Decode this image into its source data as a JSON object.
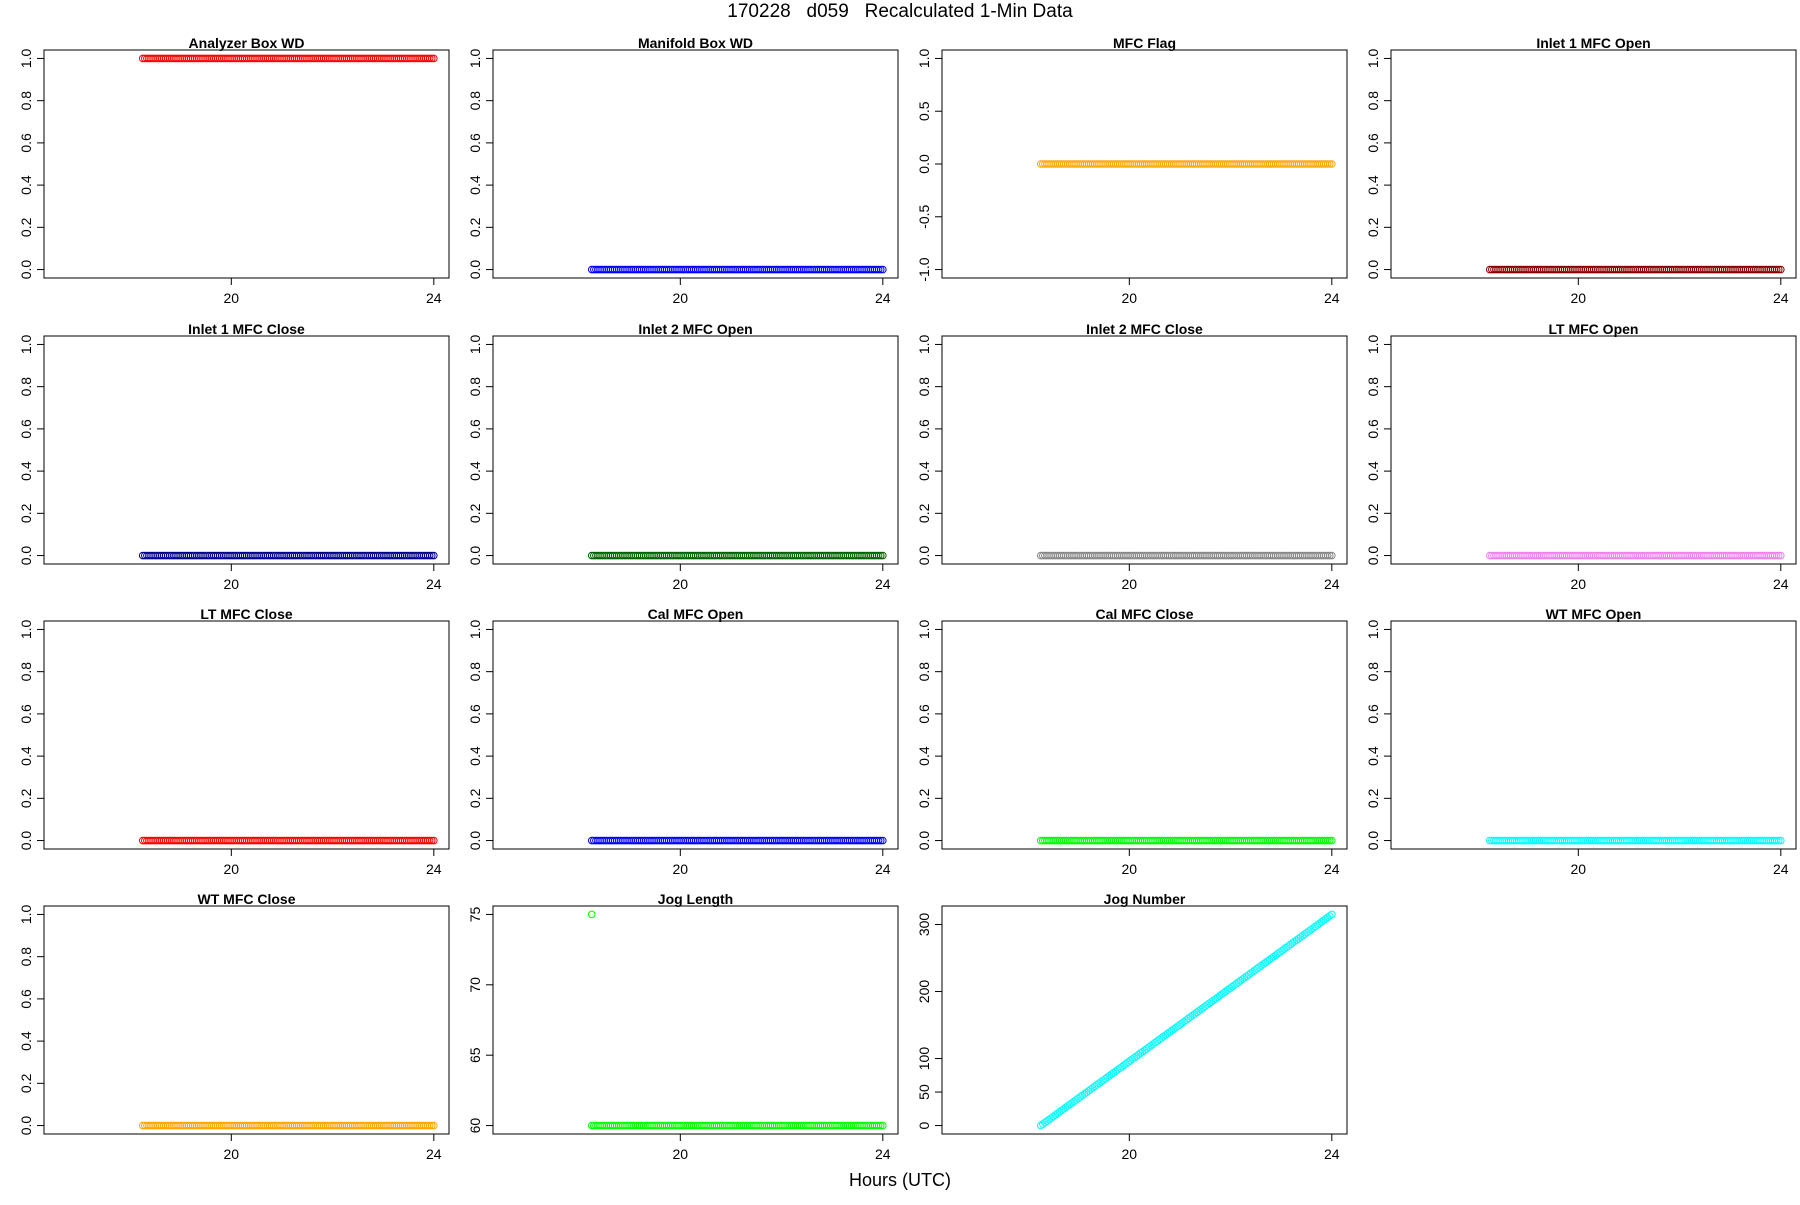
{
  "figure": {
    "title": "170228   d059   Recalculated 1-Min Data",
    "xlabel": "Hours (UTC)"
  },
  "chart_data": [
    {
      "type": "scatter",
      "title": "Analyzer Box WD",
      "color": "#ff0000",
      "xlim": [
        16.3,
        24.3
      ],
      "ylim": [
        -0.04,
        1.04
      ],
      "xticks": [
        20,
        24
      ],
      "yticks": [
        "0.0",
        "0.2",
        "0.4",
        "0.6",
        "0.8",
        "1.0"
      ],
      "x_range": [
        18.25,
        24.0
      ],
      "y_values": "constant",
      "y": 1.0
    },
    {
      "type": "scatter",
      "title": "Manifold Box WD",
      "color": "#0000ff",
      "xlim": [
        16.3,
        24.3
      ],
      "ylim": [
        -0.04,
        1.04
      ],
      "xticks": [
        20,
        24
      ],
      "yticks": [
        "0.0",
        "0.2",
        "0.4",
        "0.6",
        "0.8",
        "1.0"
      ],
      "x_range": [
        18.25,
        24.0
      ],
      "y_values": "constant",
      "y": 0.0
    },
    {
      "type": "scatter",
      "title": "MFC Flag",
      "color": "#ffa500",
      "xlim": [
        16.3,
        24.3
      ],
      "ylim": [
        -1.08,
        1.08
      ],
      "xticks": [
        20,
        24
      ],
      "yticks": [
        "-1.0",
        "-0.5",
        "0.0",
        "0.5",
        "1.0"
      ],
      "x_range": [
        18.25,
        24.0
      ],
      "y_values": "constant",
      "y": 0.0
    },
    {
      "type": "scatter",
      "title": "Inlet 1 MFC Open",
      "color": "#8b0000",
      "xlim": [
        16.3,
        24.3
      ],
      "ylim": [
        -0.04,
        1.04
      ],
      "xticks": [
        20,
        24
      ],
      "yticks": [
        "0.0",
        "0.2",
        "0.4",
        "0.6",
        "0.8",
        "1.0"
      ],
      "x_range": [
        18.25,
        24.0
      ],
      "y_values": "constant",
      "y": 0.0
    },
    {
      "type": "scatter",
      "title": "Inlet 1 MFC Close",
      "color": "#00008b",
      "xlim": [
        16.3,
        24.3
      ],
      "ylim": [
        -0.04,
        1.04
      ],
      "xticks": [
        20,
        24
      ],
      "yticks": [
        "0.0",
        "0.2",
        "0.4",
        "0.6",
        "0.8",
        "1.0"
      ],
      "x_range": [
        18.25,
        24.0
      ],
      "y_values": "constant",
      "y": 0.0
    },
    {
      "type": "scatter",
      "title": "Inlet 2 MFC Open",
      "color": "#006400",
      "xlim": [
        16.3,
        24.3
      ],
      "ylim": [
        -0.04,
        1.04
      ],
      "xticks": [
        20,
        24
      ],
      "yticks": [
        "0.0",
        "0.2",
        "0.4",
        "0.6",
        "0.8",
        "1.0"
      ],
      "x_range": [
        18.25,
        24.0
      ],
      "y_values": "constant",
      "y": 0.0
    },
    {
      "type": "scatter",
      "title": "Inlet 2 MFC Close",
      "color": "#888888",
      "xlim": [
        16.3,
        24.3
      ],
      "ylim": [
        -0.04,
        1.04
      ],
      "xticks": [
        20,
        24
      ],
      "yticks": [
        "0.0",
        "0.2",
        "0.4",
        "0.6",
        "0.8",
        "1.0"
      ],
      "x_range": [
        18.25,
        24.0
      ],
      "y_values": "constant",
      "y": 0.0
    },
    {
      "type": "scatter",
      "title": "LT MFC Open",
      "color": "#ee82ee",
      "xlim": [
        16.3,
        24.3
      ],
      "ylim": [
        -0.04,
        1.04
      ],
      "xticks": [
        20,
        24
      ],
      "yticks": [
        "0.0",
        "0.2",
        "0.4",
        "0.6",
        "0.8",
        "1.0"
      ],
      "x_range": [
        18.25,
        24.0
      ],
      "y_values": "constant",
      "y": 0.0
    },
    {
      "type": "scatter",
      "title": "LT MFC Close",
      "color": "#ff0000",
      "xlim": [
        16.3,
        24.3
      ],
      "ylim": [
        -0.04,
        1.04
      ],
      "xticks": [
        20,
        24
      ],
      "yticks": [
        "0.0",
        "0.2",
        "0.4",
        "0.6",
        "0.8",
        "1.0"
      ],
      "x_range": [
        18.25,
        24.0
      ],
      "y_values": "constant",
      "y": 0.0
    },
    {
      "type": "scatter",
      "title": "Cal MFC Open",
      "color": "#0000ff",
      "xlim": [
        16.3,
        24.3
      ],
      "ylim": [
        -0.04,
        1.04
      ],
      "xticks": [
        20,
        24
      ],
      "yticks": [
        "0.0",
        "0.2",
        "0.4",
        "0.6",
        "0.8",
        "1.0"
      ],
      "x_range": [
        18.25,
        24.0
      ],
      "y_values": "constant",
      "y": 0.0
    },
    {
      "type": "scatter",
      "title": "Cal MFC Close",
      "color": "#00ff00",
      "xlim": [
        16.3,
        24.3
      ],
      "ylim": [
        -0.04,
        1.04
      ],
      "xticks": [
        20,
        24
      ],
      "yticks": [
        "0.0",
        "0.2",
        "0.4",
        "0.6",
        "0.8",
        "1.0"
      ],
      "x_range": [
        18.25,
        24.0
      ],
      "y_values": "constant",
      "y": 0.0
    },
    {
      "type": "scatter",
      "title": "WT MFC Open",
      "color": "#00ffff",
      "xlim": [
        16.3,
        24.3
      ],
      "ylim": [
        -0.04,
        1.04
      ],
      "xticks": [
        20,
        24
      ],
      "yticks": [
        "0.0",
        "0.2",
        "0.4",
        "0.6",
        "0.8",
        "1.0"
      ],
      "x_range": [
        18.25,
        24.0
      ],
      "y_values": "constant",
      "y": 0.0
    },
    {
      "type": "scatter",
      "title": "WT MFC Close",
      "color": "#ffa500",
      "xlim": [
        16.3,
        24.3
      ],
      "ylim": [
        -0.04,
        1.04
      ],
      "xticks": [
        20,
        24
      ],
      "yticks": [
        "0.0",
        "0.2",
        "0.4",
        "0.6",
        "0.8",
        "1.0"
      ],
      "x_range": [
        18.25,
        24.0
      ],
      "y_values": "constant",
      "y": 0.0
    },
    {
      "type": "scatter",
      "title": "Jog Length",
      "color": "#00ff00",
      "xlim": [
        16.3,
        24.3
      ],
      "ylim": [
        59.4,
        75.6
      ],
      "xticks": [
        20,
        24
      ],
      "yticks": [
        "60",
        "65",
        "70",
        "75"
      ],
      "x_range": [
        18.25,
        24.0
      ],
      "y_values": "constant",
      "y": 60,
      "outliers": [
        {
          "x": 18.25,
          "y": 75
        }
      ]
    },
    {
      "type": "scatter",
      "title": "Jog Number",
      "color": "#00ffff",
      "xlim": [
        16.3,
        24.3
      ],
      "ylim": [
        -12.6,
        327.6
      ],
      "xticks": [
        20,
        24
      ],
      "yticks": [
        "0",
        "50",
        "100",
        "200",
        "300"
      ],
      "x_range": [
        18.25,
        24.0
      ],
      "y_values": "linear",
      "y_start": 0,
      "y_end": 315
    }
  ]
}
